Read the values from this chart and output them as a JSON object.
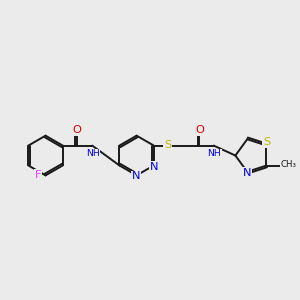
{
  "bg_color": "#ebebeb",
  "bond_color": "#1a1a1a",
  "atoms": {
    "F": "#e040fb",
    "O": "#dd0000",
    "N": "#0000ee",
    "S": "#bbbb00",
    "CH3": "#1a1a1a"
  },
  "lw": 1.4,
  "fs": 7.2,
  "xlim": [
    0,
    10.5
  ],
  "ylim": [
    3.0,
    7.5
  ]
}
